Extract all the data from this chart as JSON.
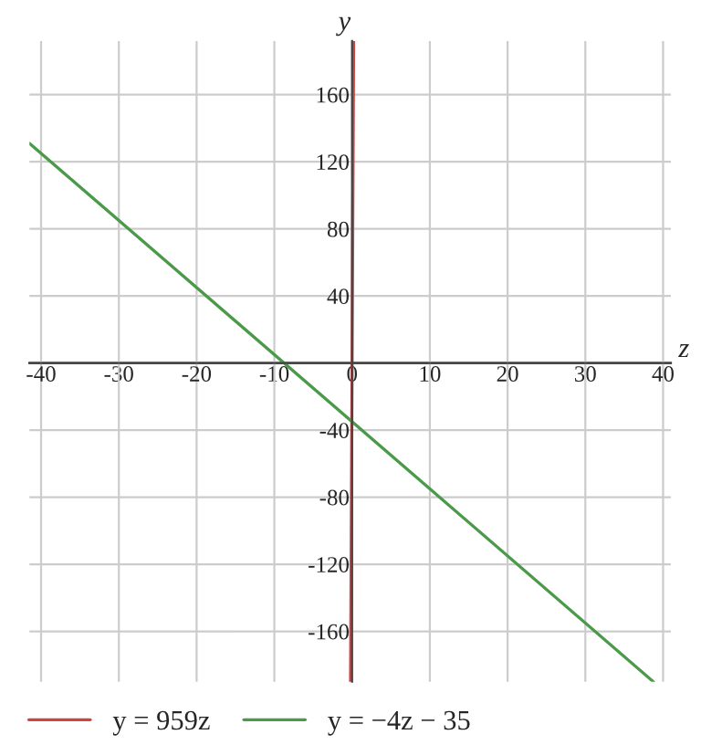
{
  "chart_data": {
    "type": "line",
    "xlabel": "z",
    "ylabel": "y",
    "xlim": [
      -41.5,
      41
    ],
    "ylim": [
      -190,
      192
    ],
    "xticks": [
      -40,
      -30,
      -20,
      -10,
      0,
      10,
      20,
      30,
      40
    ],
    "yticks": [
      -160,
      -120,
      -80,
      -40,
      40,
      80,
      120,
      160
    ],
    "grid": true,
    "legend": "bottom",
    "marker": "none",
    "line_style": "solid",
    "series": [
      {
        "name": "y = 959z",
        "color": "#cc4444",
        "x": [
          -0.198,
          0.2
        ],
        "values": [
          -190,
          192
        ]
      },
      {
        "name": "y = −4z − 35",
        "color": "#4a9a4a",
        "x": [
          -41.5,
          38.75
        ],
        "values": [
          131,
          -190
        ]
      }
    ]
  }
}
